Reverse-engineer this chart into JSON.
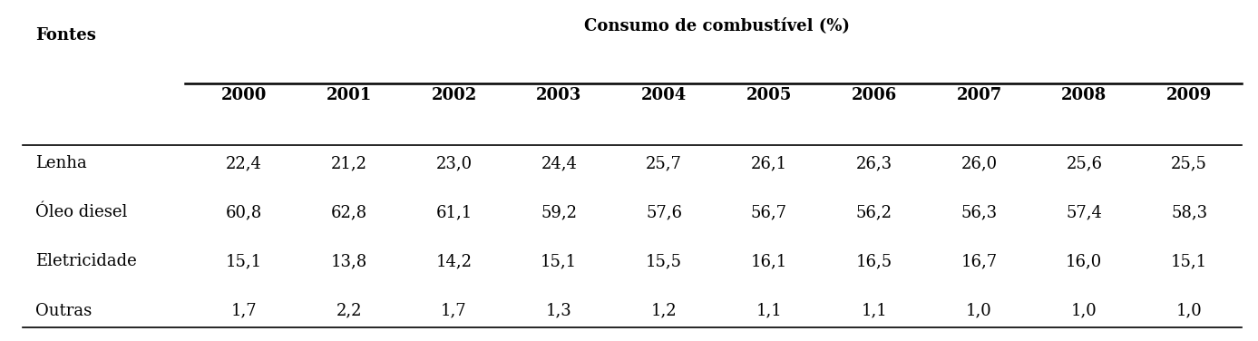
{
  "col_header_main": "Consumo de combustível (%)",
  "col_header_row1": "Fontes",
  "years": [
    "2000",
    "2001",
    "2002",
    "2003",
    "2004",
    "2005",
    "2006",
    "2007",
    "2008",
    "2009"
  ],
  "rows": [
    {
      "fonte": "Lenha",
      "values": [
        "22,4",
        "21,2",
        "23,0",
        "24,4",
        "25,7",
        "26,1",
        "26,3",
        "26,0",
        "25,6",
        "25,5"
      ]
    },
    {
      "fonte": "Óleo diesel",
      "values": [
        "60,8",
        "62,8",
        "61,1",
        "59,2",
        "57,6",
        "56,7",
        "56,2",
        "56,3",
        "57,4",
        "58,3"
      ]
    },
    {
      "fonte": "Eletricidade",
      "values": [
        "15,1",
        "13,8",
        "14,2",
        "15,1",
        "15,5",
        "16,1",
        "16,5",
        "16,7",
        "16,0",
        "15,1"
      ]
    },
    {
      "fonte": "Outras",
      "values": [
        "1,7",
        "2,2",
        "1,7",
        "1,3",
        "1,2",
        "1,1",
        "1,1",
        "1,0",
        "1,0",
        "1,0"
      ]
    }
  ],
  "background_color": "#ffffff",
  "text_color": "#000000",
  "header_fontsize": 13,
  "body_fontsize": 13,
  "lw_thick": 1.8,
  "lw_thin": 1.2
}
